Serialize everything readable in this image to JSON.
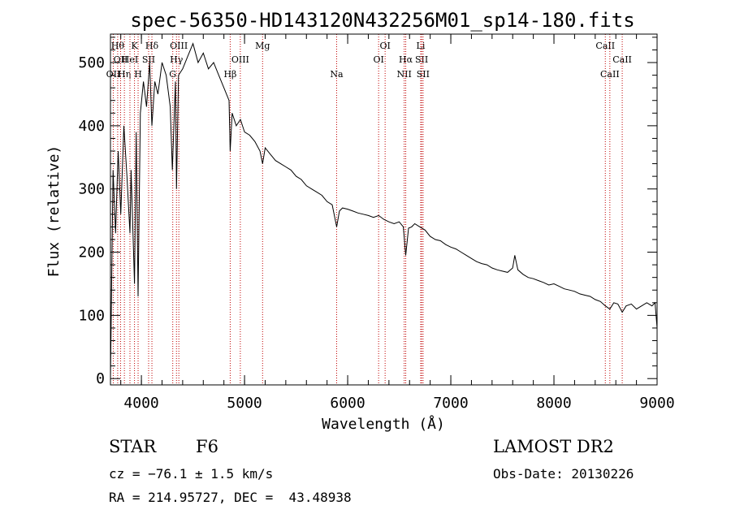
{
  "chart_data": {
    "type": "line",
    "title": "spec-56350-HD143120N432256M01_sp14-180.fits",
    "xlabel": "Wavelength (Å)",
    "ylabel": "Flux (relative)",
    "xlim": [
      3700,
      9000
    ],
    "ylim": [
      -10,
      545
    ],
    "xticks": [
      4000,
      5000,
      6000,
      7000,
      8000,
      9000
    ],
    "yticks": [
      0,
      100,
      200,
      300,
      400,
      500
    ],
    "grid": false,
    "line_color": "#000000",
    "marker_color": "#c00000",
    "series": [
      {
        "x": [
          3700,
          3725,
          3750,
          3775,
          3800,
          3830,
          3860,
          3889,
          3900,
          3933,
          3950,
          3968,
          3990,
          4020,
          4050,
          4080,
          4102,
          4130,
          4160,
          4200,
          4240,
          4280,
          4300,
          4330,
          4340,
          4360,
          4400,
          4450,
          4500,
          4550,
          4600,
          4650,
          4700,
          4750,
          4800,
          4850,
          4861,
          4880,
          4920,
          4960,
          5000,
          5050,
          5100,
          5150,
          5175,
          5200,
          5250,
          5300,
          5350,
          5400,
          5450,
          5500,
          5550,
          5600,
          5650,
          5700,
          5750,
          5800,
          5850,
          5893,
          5920,
          5950,
          6000,
          6050,
          6100,
          6150,
          6200,
          6250,
          6300,
          6350,
          6400,
          6450,
          6500,
          6540,
          6563,
          6590,
          6620,
          6650,
          6700,
          6750,
          6800,
          6850,
          6900,
          6950,
          7000,
          7050,
          7100,
          7150,
          7200,
          7250,
          7300,
          7350,
          7400,
          7450,
          7500,
          7550,
          7600,
          7620,
          7650,
          7700,
          7750,
          7800,
          7850,
          7900,
          7950,
          8000,
          8050,
          8100,
          8150,
          8200,
          8250,
          8300,
          8350,
          8400,
          8450,
          8498,
          8542,
          8580,
          8620,
          8662,
          8700,
          8750,
          8800,
          8850,
          8900,
          8950,
          8980,
          9000
        ],
        "y": [
          0,
          330,
          230,
          360,
          260,
          400,
          320,
          230,
          330,
          150,
          390,
          130,
          420,
          470,
          430,
          500,
          400,
          470,
          450,
          500,
          480,
          430,
          330,
          470,
          300,
          480,
          490,
          510,
          530,
          500,
          515,
          490,
          500,
          480,
          460,
          440,
          360,
          420,
          400,
          410,
          390,
          385,
          375,
          360,
          340,
          365,
          355,
          345,
          340,
          335,
          330,
          320,
          315,
          305,
          300,
          295,
          290,
          280,
          275,
          240,
          265,
          270,
          268,
          265,
          262,
          260,
          258,
          255,
          258,
          252,
          248,
          245,
          248,
          240,
          195,
          238,
          240,
          245,
          240,
          235,
          225,
          220,
          218,
          212,
          208,
          205,
          200,
          195,
          190,
          185,
          182,
          180,
          175,
          172,
          170,
          168,
          175,
          195,
          172,
          165,
          160,
          158,
          155,
          152,
          148,
          150,
          146,
          142,
          140,
          138,
          134,
          132,
          130,
          125,
          122,
          115,
          110,
          120,
          118,
          105,
          115,
          118,
          110,
          115,
          120,
          115,
          120,
          80
        ]
      }
    ],
    "spectral_lines": [
      {
        "x": 3727,
        "label": "OII",
        "row": 3
      },
      {
        "x": 3770,
        "label": "Hθ",
        "row": 1
      },
      {
        "x": 3798,
        "label": "OII",
        "row": 2
      },
      {
        "x": 3835,
        "label": "Hη",
        "row": 3
      },
      {
        "x": 3889,
        "label": "HeI",
        "row": 2
      },
      {
        "x": 3933,
        "label": "K",
        "row": 1
      },
      {
        "x": 3968,
        "label": "H",
        "row": 3
      },
      {
        "x": 4070,
        "label": "SII",
        "row": 2
      },
      {
        "x": 4102,
        "label": "Hδ",
        "row": 1
      },
      {
        "x": 4304,
        "label": "G",
        "row": 3
      },
      {
        "x": 4340,
        "label": "Hγ",
        "row": 2
      },
      {
        "x": 4363,
        "label": "OIII",
        "row": 1
      },
      {
        "x": 4861,
        "label": "Hβ",
        "row": 3
      },
      {
        "x": 4959,
        "label": "OIII",
        "row": 2
      },
      {
        "x": 5175,
        "label": "Mg",
        "row": 1
      },
      {
        "x": 5893,
        "label": "Na",
        "row": 3
      },
      {
        "x": 6300,
        "label": "OI",
        "row": 2
      },
      {
        "x": 6363,
        "label": "OI",
        "row": 1
      },
      {
        "x": 6548,
        "label": "NII",
        "row": 3
      },
      {
        "x": 6563,
        "label": "Hα",
        "row": 2
      },
      {
        "x": 6708,
        "label": "Li",
        "row": 1
      },
      {
        "x": 6717,
        "label": "SII",
        "row": 2
      },
      {
        "x": 6731,
        "label": "SII",
        "row": 3
      },
      {
        "x": 8498,
        "label": "CaII",
        "row": 1
      },
      {
        "x": 8542,
        "label": "CaII",
        "row": 3
      },
      {
        "x": 8662,
        "label": "CaII",
        "row": 2
      }
    ]
  },
  "info": {
    "object_class": "STAR",
    "subclass": "F6",
    "cz": "cz = −76.1 ± 1.5 km/s",
    "coords": "RA = 214.95727, DEC =  43.48938",
    "survey": "LAMOST DR2",
    "obs_date": "Obs-Date: 20130226"
  }
}
